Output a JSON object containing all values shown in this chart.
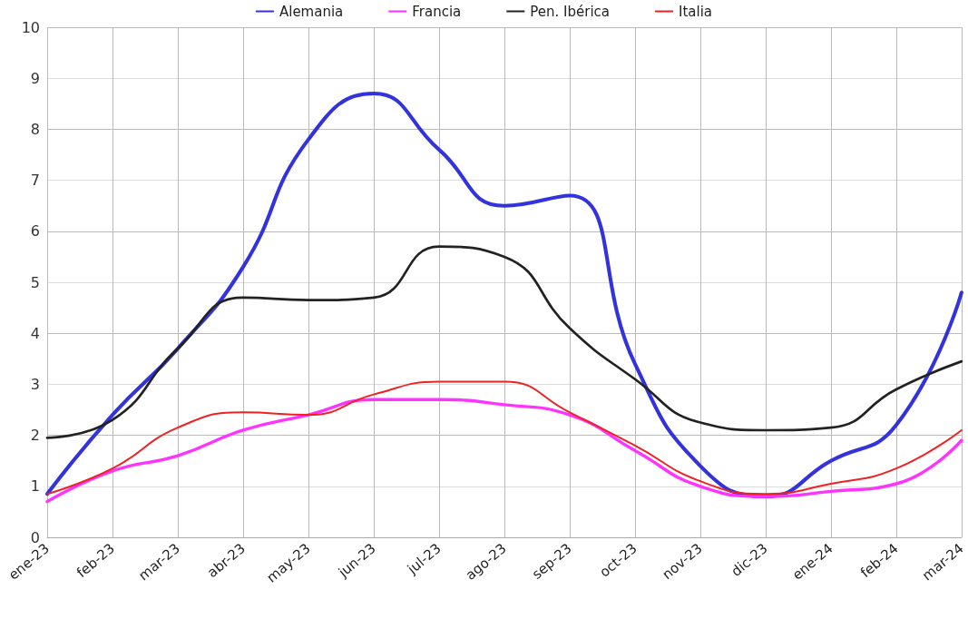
{
  "chart_data": {
    "type": "line",
    "categories": [
      "ene-23",
      "feb-23",
      "mar-23",
      "abr-23",
      "may-23",
      "jun-23",
      "jul-23",
      "ago-23",
      "sep-23",
      "oct-23",
      "nov-23",
      "dic-23",
      "ene-24",
      "feb-24",
      "mar-24"
    ],
    "series": [
      {
        "name": "Alemania",
        "color": "#3333dd",
        "values": [
          0.85,
          2.4,
          3.7,
          5.3,
          7.8,
          8.7,
          7.6,
          6.5,
          6.7,
          3.4,
          1.4,
          0.8,
          1.5,
          2.2,
          4.8
        ]
      },
      {
        "name": "Francia",
        "color": "#ff33ff",
        "values": [
          0.7,
          1.3,
          1.6,
          2.1,
          2.4,
          2.7,
          2.7,
          2.6,
          2.4,
          1.7,
          1.0,
          0.8,
          0.9,
          1.05,
          1.9
        ]
      },
      {
        "name": "Pen. Ibérica",
        "color": "#222222",
        "values": [
          1.95,
          2.3,
          3.7,
          4.7,
          4.65,
          4.7,
          5.7,
          5.5,
          4.1,
          3.1,
          2.25,
          2.1,
          2.15,
          2.9,
          3.45
        ]
      },
      {
        "name": "Italia",
        "color": "#ee2222",
        "values": [
          0.85,
          1.35,
          2.15,
          2.45,
          2.4,
          2.8,
          3.05,
          3.05,
          2.45,
          1.8,
          1.1,
          0.85,
          1.05,
          1.35,
          2.1
        ]
      }
    ],
    "ylim": [
      0,
      10
    ],
    "yticks": [
      0,
      1,
      2,
      3,
      4,
      5,
      6,
      7,
      8,
      9,
      10
    ],
    "grid": true,
    "legend": "top",
    "marker": "none",
    "line_style": "solid"
  }
}
